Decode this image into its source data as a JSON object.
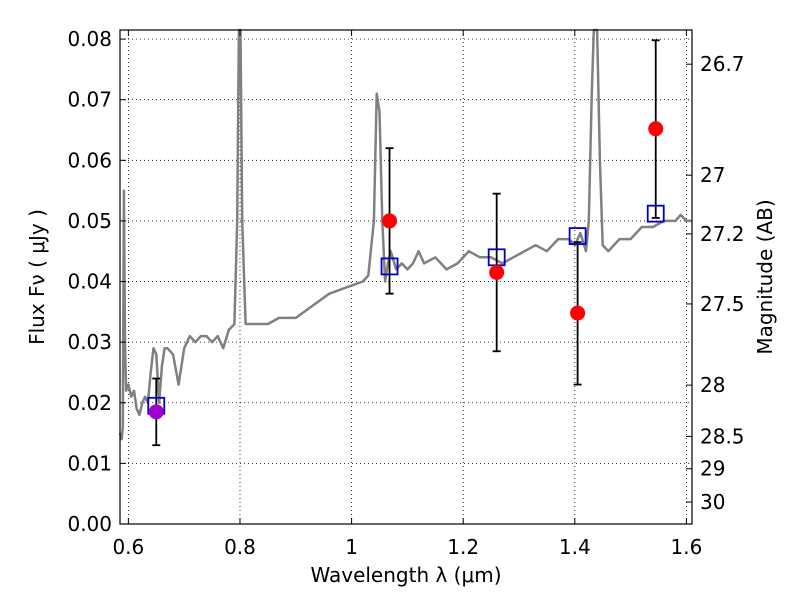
{
  "chart_data": {
    "type": "scatter",
    "xlabel": "Wavelength  λ (μm)",
    "ylabel": "Flux  Fν  ( μJy )",
    "y2label": "Magnitude (AB)",
    "xlim": [
      0.585,
      1.61
    ],
    "ylim": [
      0.0,
      0.0815
    ],
    "grid": true,
    "xticks": [
      {
        "value": 0.6,
        "label": "0.6"
      },
      {
        "value": 0.8,
        "label": "0.8"
      },
      {
        "value": 1.0,
        "label": "1"
      },
      {
        "value": 1.2,
        "label": "1.2"
      },
      {
        "value": 1.4,
        "label": "1.4"
      },
      {
        "value": 1.6,
        "label": "1.6"
      }
    ],
    "yticks": [
      {
        "value": 0.0,
        "label": "0.00"
      },
      {
        "value": 0.01,
        "label": "0.01"
      },
      {
        "value": 0.02,
        "label": "0.02"
      },
      {
        "value": 0.03,
        "label": "0.03"
      },
      {
        "value": 0.04,
        "label": "0.04"
      },
      {
        "value": 0.05,
        "label": "0.05"
      },
      {
        "value": 0.06,
        "label": "0.06"
      },
      {
        "value": 0.07,
        "label": "0.07"
      },
      {
        "value": 0.08,
        "label": "0.08"
      }
    ],
    "y2ticks": [
      {
        "value": 26.7,
        "label": "26.7"
      },
      {
        "value": 27.0,
        "label": "27"
      },
      {
        "value": 27.2,
        "label": "27.2"
      },
      {
        "value": 27.5,
        "label": "27.5"
      },
      {
        "value": 28.0,
        "label": "28"
      },
      {
        "value": 28.5,
        "label": "28.5"
      },
      {
        "value": 29.0,
        "label": "29"
      },
      {
        "value": 30.0,
        "label": "30"
      }
    ],
    "series": [
      {
        "kind": "line",
        "color": "#808080",
        "points": [
          [
            0.585,
            0.015
          ],
          [
            0.588,
            0.014
          ],
          [
            0.59,
            0.016
          ],
          [
            0.592,
            0.055
          ],
          [
            0.594,
            0.03
          ],
          [
            0.596,
            0.022
          ],
          [
            0.6,
            0.023
          ],
          [
            0.605,
            0.021
          ],
          [
            0.61,
            0.022
          ],
          [
            0.615,
            0.019
          ],
          [
            0.62,
            0.018
          ],
          [
            0.625,
            0.02
          ],
          [
            0.63,
            0.021
          ],
          [
            0.635,
            0.02
          ],
          [
            0.64,
            0.025
          ],
          [
            0.645,
            0.029
          ],
          [
            0.65,
            0.028
          ],
          [
            0.655,
            0.02
          ],
          [
            0.66,
            0.026
          ],
          [
            0.665,
            0.029
          ],
          [
            0.67,
            0.029
          ],
          [
            0.68,
            0.028
          ],
          [
            0.69,
            0.023
          ],
          [
            0.7,
            0.029
          ],
          [
            0.71,
            0.031
          ],
          [
            0.72,
            0.03
          ],
          [
            0.73,
            0.031
          ],
          [
            0.74,
            0.031
          ],
          [
            0.75,
            0.03
          ],
          [
            0.76,
            0.031
          ],
          [
            0.77,
            0.029
          ],
          [
            0.78,
            0.032
          ],
          [
            0.79,
            0.033
          ],
          [
            0.795,
            0.05
          ],
          [
            0.798,
            0.0815
          ],
          [
            0.801,
            0.0815
          ],
          [
            0.804,
            0.05
          ],
          [
            0.81,
            0.033
          ],
          [
            0.83,
            0.033
          ],
          [
            0.85,
            0.033
          ],
          [
            0.87,
            0.034
          ],
          [
            0.9,
            0.034
          ],
          [
            0.93,
            0.036
          ],
          [
            0.96,
            0.038
          ],
          [
            0.99,
            0.039
          ],
          [
            1.02,
            0.04
          ],
          [
            1.03,
            0.041
          ],
          [
            1.04,
            0.05
          ],
          [
            1.045,
            0.071
          ],
          [
            1.05,
            0.068
          ],
          [
            1.055,
            0.05
          ],
          [
            1.06,
            0.04
          ],
          [
            1.065,
            0.043
          ],
          [
            1.07,
            0.045
          ],
          [
            1.08,
            0.042
          ],
          [
            1.09,
            0.043
          ],
          [
            1.1,
            0.042
          ],
          [
            1.11,
            0.043
          ],
          [
            1.12,
            0.045
          ],
          [
            1.13,
            0.043
          ],
          [
            1.15,
            0.044
          ],
          [
            1.17,
            0.042
          ],
          [
            1.19,
            0.043
          ],
          [
            1.21,
            0.045
          ],
          [
            1.23,
            0.044
          ],
          [
            1.25,
            0.044
          ],
          [
            1.27,
            0.043
          ],
          [
            1.29,
            0.044
          ],
          [
            1.31,
            0.045
          ],
          [
            1.33,
            0.046
          ],
          [
            1.35,
            0.045
          ],
          [
            1.37,
            0.047
          ],
          [
            1.39,
            0.047
          ],
          [
            1.4,
            0.046
          ],
          [
            1.41,
            0.048
          ],
          [
            1.42,
            0.045
          ],
          [
            1.425,
            0.05
          ],
          [
            1.43,
            0.07
          ],
          [
            1.434,
            0.0815
          ],
          [
            1.44,
            0.0815
          ],
          [
            1.445,
            0.06
          ],
          [
            1.45,
            0.046
          ],
          [
            1.46,
            0.045
          ],
          [
            1.48,
            0.047
          ],
          [
            1.5,
            0.047
          ],
          [
            1.52,
            0.049
          ],
          [
            1.54,
            0.049
          ],
          [
            1.56,
            0.05
          ],
          [
            1.58,
            0.05
          ],
          [
            1.59,
            0.051
          ],
          [
            1.6,
            0.05
          ],
          [
            1.61,
            0.05
          ]
        ]
      },
      {
        "kind": "errorbars",
        "color": "#000000",
        "points": [
          {
            "x": 0.65,
            "y": 0.0185,
            "lo": 0.013,
            "hi": 0.024
          },
          {
            "x": 1.068,
            "y": 0.05,
            "lo": 0.038,
            "hi": 0.062
          },
          {
            "x": 1.26,
            "y": 0.0415,
            "lo": 0.0285,
            "hi": 0.0545
          },
          {
            "x": 1.405,
            "y": 0.0348,
            "lo": 0.023,
            "hi": 0.0465
          },
          {
            "x": 1.545,
            "y": 0.0652,
            "lo": 0.0505,
            "hi": 0.0798
          }
        ]
      },
      {
        "kind": "squares",
        "color": "#0000cc",
        "points": [
          [
            0.65,
            0.0195
          ],
          [
            1.068,
            0.0425
          ],
          [
            1.26,
            0.044
          ],
          [
            1.405,
            0.0475
          ],
          [
            1.545,
            0.0512
          ]
        ]
      },
      {
        "kind": "dots",
        "colors": [
          "#a000d0",
          "#ff0000",
          "#ff0000",
          "#ff0000",
          "#ff0000"
        ],
        "points": [
          [
            0.65,
            0.0185
          ],
          [
            1.068,
            0.05
          ],
          [
            1.26,
            0.0415
          ],
          [
            1.405,
            0.0348
          ],
          [
            1.545,
            0.0652
          ]
        ]
      }
    ]
  }
}
